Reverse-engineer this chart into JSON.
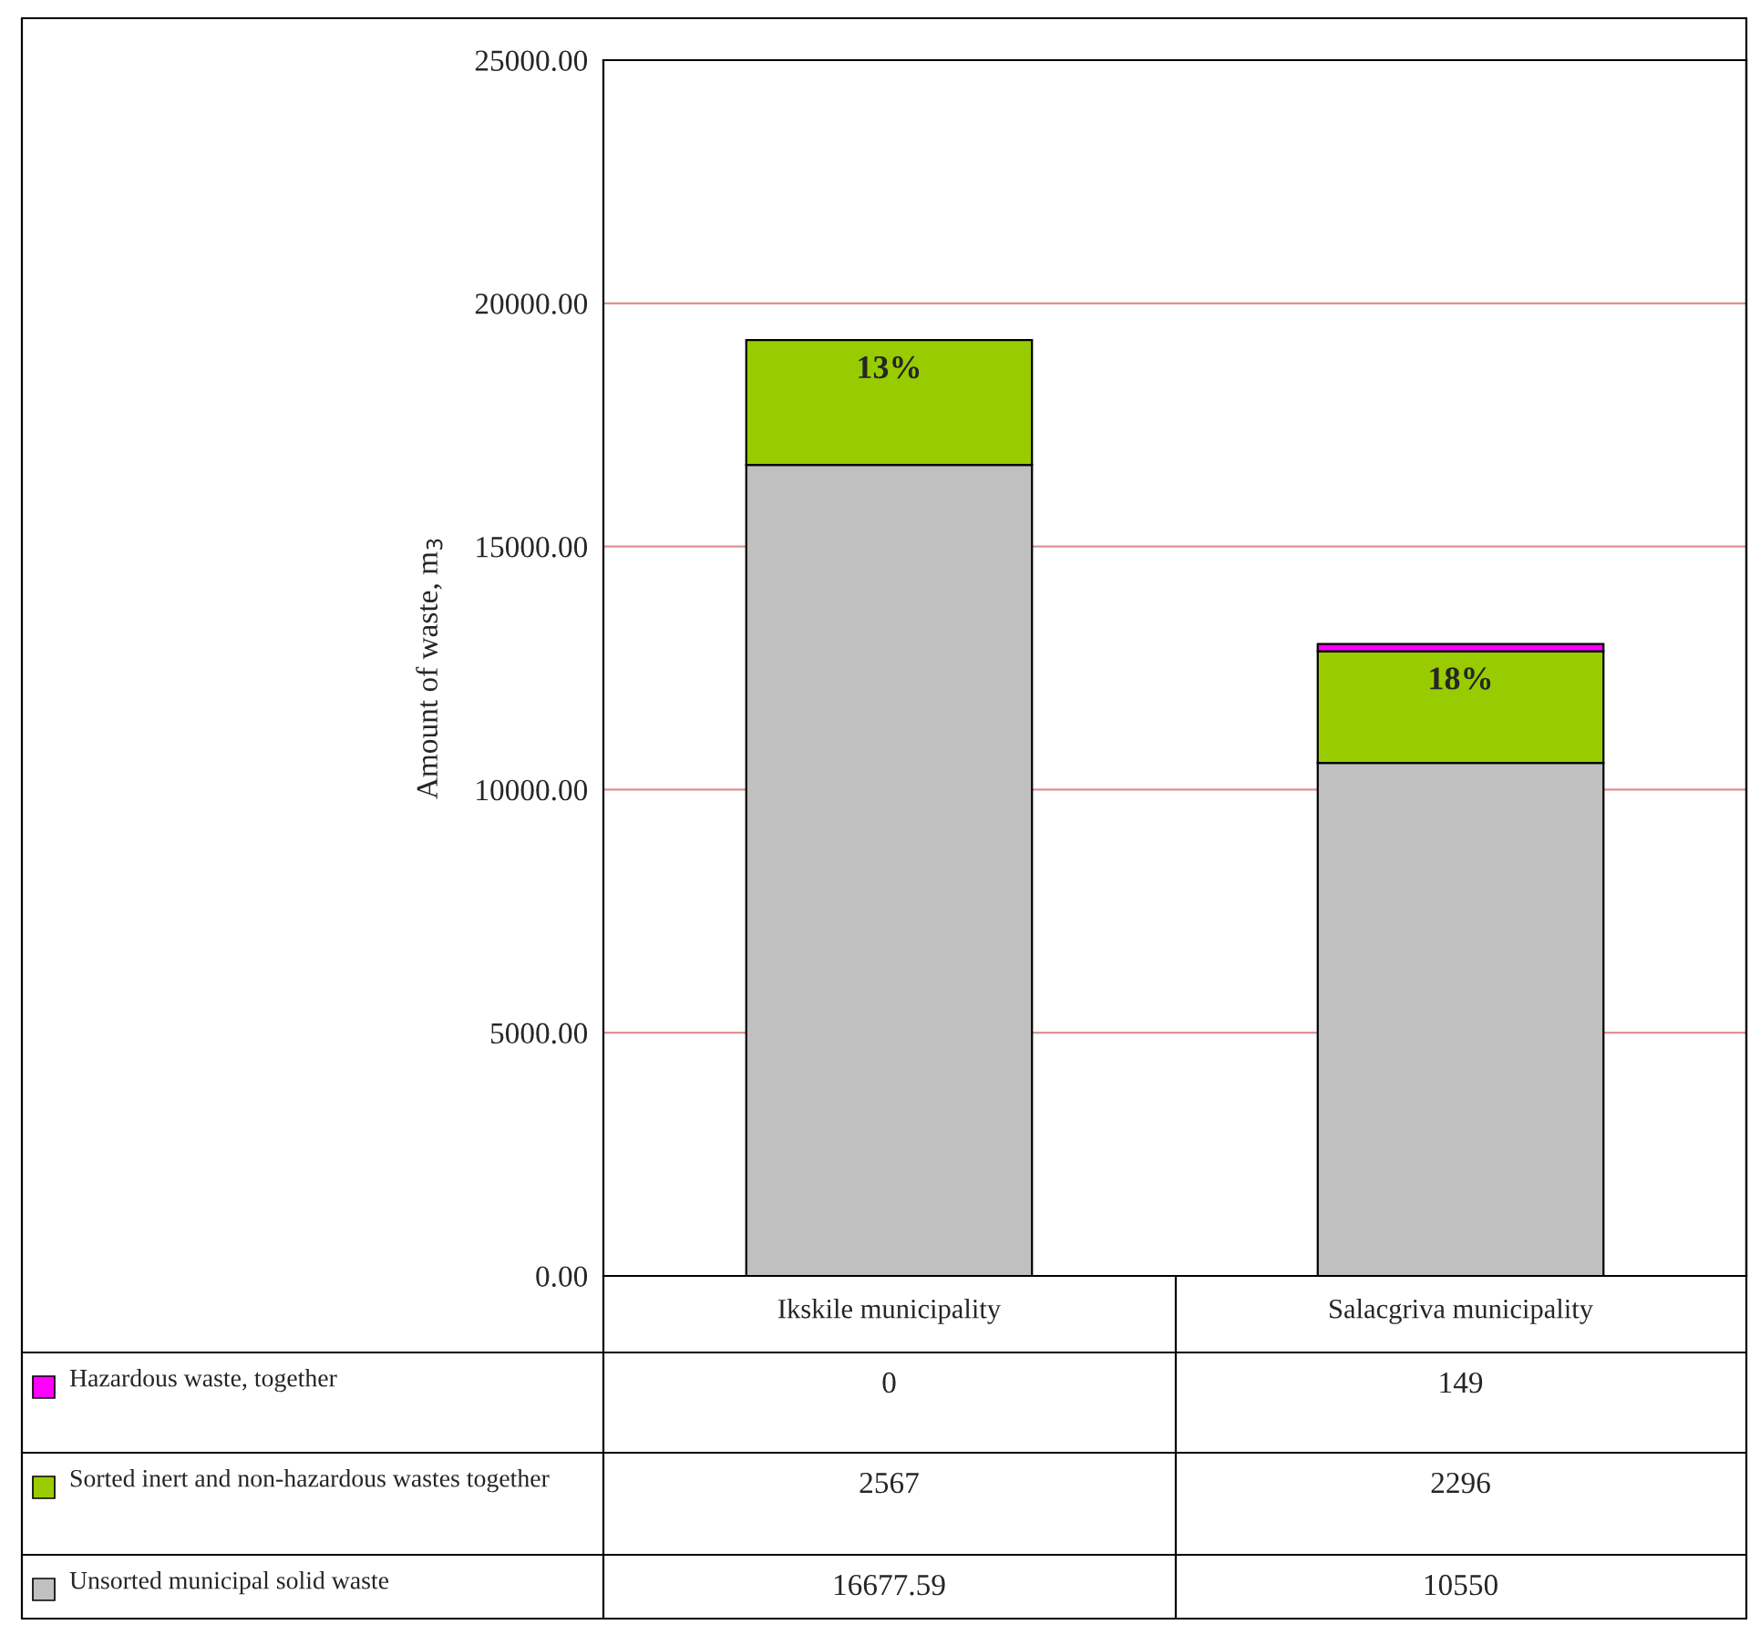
{
  "chart_data": {
    "type": "bar",
    "stacked": true,
    "ylabel": "Amount of waste, m$_{3}$",
    "categories": [
      "Ikskile municipality",
      "Salacgriva municipality"
    ],
    "series": [
      {
        "name": "Unsorted municipal solid waste",
        "color": "#c0c0c0",
        "values": [
          16677.59,
          10550
        ]
      },
      {
        "name": "Sorted inert and non-hazardous wastes together",
        "color": "#99cc00",
        "values": [
          2567,
          2296
        ]
      },
      {
        "name": "Hazardous waste, together",
        "color": "#ff00ff",
        "values": [
          0,
          149
        ]
      }
    ],
    "ylim": [
      0,
      25000
    ],
    "yticks": [
      {
        "value": 0,
        "label": "0.00"
      },
      {
        "value": 5000,
        "label": "5000.00"
      },
      {
        "value": 10000,
        "label": "10000.00"
      },
      {
        "value": 15000,
        "label": "15000.00"
      },
      {
        "value": 20000,
        "label": "20000.00"
      },
      {
        "value": 25000,
        "label": "25000.00"
      }
    ],
    "grid": "y",
    "legend": "bottom",
    "data_labels": true,
    "annotations": [
      "13%",
      "18%"
    ]
  }
}
